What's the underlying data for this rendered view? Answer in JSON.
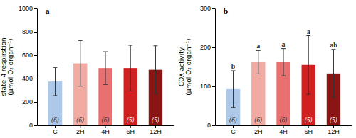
{
  "chart_data": [
    {
      "type": "bar",
      "title": "a",
      "categories": [
        "C",
        "2H",
        "4H",
        "6H",
        "12H"
      ],
      "values": [
        375,
        530,
        490,
        490,
        475
      ],
      "errors": [
        120,
        195,
        140,
        195,
        205
      ],
      "n_labels": [
        "(6)",
        "(6)",
        "(6)",
        "(5)",
        "(5)"
      ],
      "colors": [
        "#adc8e8",
        "#f2aba3",
        "#e87070",
        "#d02020",
        "#8b1515"
      ],
      "y_label": "state-4 respirstion\n(μmol O₂ organ⁻¹)",
      "ylim": [
        0,
        1000
      ],
      "yticks": [
        0,
        200,
        400,
        600,
        800,
        1000
      ]
    },
    {
      "type": "bar",
      "title": "b",
      "categories": [
        "C",
        "2H",
        "4H",
        "6H",
        "12H"
      ],
      "values": [
        93,
        162,
        162,
        155,
        133
      ],
      "errors": [
        47,
        30,
        35,
        75,
        62
      ],
      "n_labels": [
        "(6)",
        "(6)",
        "(6)",
        "(5)",
        "(5)"
      ],
      "sig_labels": [
        "b",
        "a",
        "a",
        "a",
        "ab"
      ],
      "colors": [
        "#adc8e8",
        "#f2aba3",
        "#e87070",
        "#d02020",
        "#8b1515"
      ],
      "y_label": "COX activity\n(μmol O₂ organ⁻¹)",
      "ylim": [
        0,
        300
      ],
      "yticks": [
        0,
        100,
        200,
        300
      ]
    }
  ]
}
